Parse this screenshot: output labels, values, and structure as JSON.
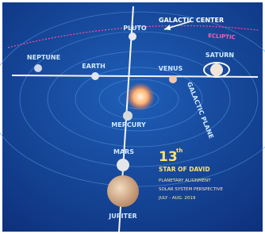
{
  "labels": {
    "pluto": "PLUTO",
    "galactic_center": "GALACTIC CENTER",
    "ecliptic": "ECLIPTIC",
    "neptune": "NEPTUNE",
    "earth": "EARTH",
    "venus": "VENUS",
    "saturn": "SATURN",
    "galactic_plane": "GALACTIC PLANE",
    "mercury": "MERCURY",
    "mars": "MARS",
    "jupiter": "JUPITER"
  },
  "caption": {
    "number": "13",
    "suffix": "th",
    "title": "STAR OF DAVID",
    "lines": [
      "PLANETARY ALIGNMENT",
      "SOLAR SYSTEM PERSPECTIVE",
      "JULY - AUG. 2019"
    ]
  }
}
